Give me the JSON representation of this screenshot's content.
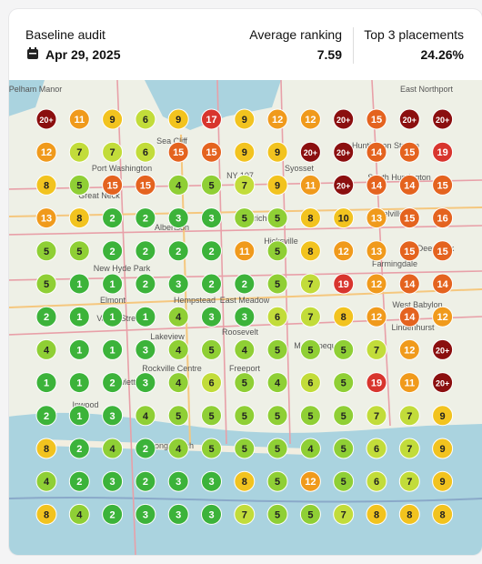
{
  "header": {
    "title": "Baseline audit",
    "date": "Apr 29, 2025",
    "avg_label": "Average ranking",
    "avg_value": "7.59",
    "top3_label": "Top 3 placements",
    "top3_value": "24.26%"
  },
  "grid": {
    "rows": [
      [
        "20+",
        11,
        9,
        6,
        9,
        17,
        9,
        12,
        12,
        "20+",
        15,
        "20+",
        "20+"
      ],
      [
        12,
        7,
        7,
        6,
        15,
        15,
        9,
        9,
        "20+",
        "20+",
        14,
        15,
        19
      ],
      [
        8,
        5,
        15,
        15,
        4,
        5,
        7,
        9,
        11,
        "20+",
        14,
        14,
        15
      ],
      [
        13,
        8,
        2,
        2,
        3,
        3,
        5,
        5,
        8,
        10,
        13,
        15,
        16
      ],
      [
        5,
        5,
        2,
        2,
        2,
        2,
        11,
        5,
        8,
        12,
        13,
        15,
        15
      ],
      [
        5,
        1,
        1,
        2,
        3,
        2,
        2,
        5,
        7,
        19,
        12,
        14,
        14
      ],
      [
        2,
        1,
        1,
        1,
        4,
        3,
        3,
        6,
        7,
        8,
        12,
        14,
        12
      ],
      [
        4,
        1,
        1,
        3,
        4,
        5,
        4,
        5,
        5,
        5,
        7,
        12,
        "20+"
      ],
      [
        1,
        1,
        2,
        3,
        4,
        6,
        5,
        4,
        6,
        5,
        19,
        11,
        "20+"
      ],
      [
        2,
        1,
        3,
        4,
        5,
        5,
        5,
        5,
        5,
        5,
        7,
        7,
        9
      ],
      [
        8,
        2,
        4,
        2,
        4,
        5,
        5,
        5,
        4,
        5,
        6,
        7,
        9
      ],
      [
        4,
        2,
        3,
        2,
        3,
        3,
        8,
        5,
        12,
        5,
        6,
        7,
        9
      ],
      [
        8,
        4,
        2,
        3,
        3,
        3,
        7,
        5,
        5,
        7,
        8,
        8,
        8
      ]
    ]
  },
  "map": {
    "labels": [
      "Pelham Manor",
      "Sea Cliff",
      "Huntington Station",
      "Port Washington",
      "Great Neck",
      "Syosset",
      "South Huntington",
      "Melville",
      "Jericho",
      "Albertson",
      "Hicksville",
      "New Hyde Park",
      "Farmingdale",
      "Elmont",
      "Hempstead",
      "East Meadow",
      "West Babylon",
      "Valley Stream",
      "Lakeview",
      "Roosevelt",
      "Massapequa",
      "Lindenhurst",
      "Rockville Centre",
      "Freeport",
      "Hewlett",
      "Inwood",
      "Long Beach",
      "East Northport",
      "Deer Park",
      "NY 107"
    ]
  }
}
